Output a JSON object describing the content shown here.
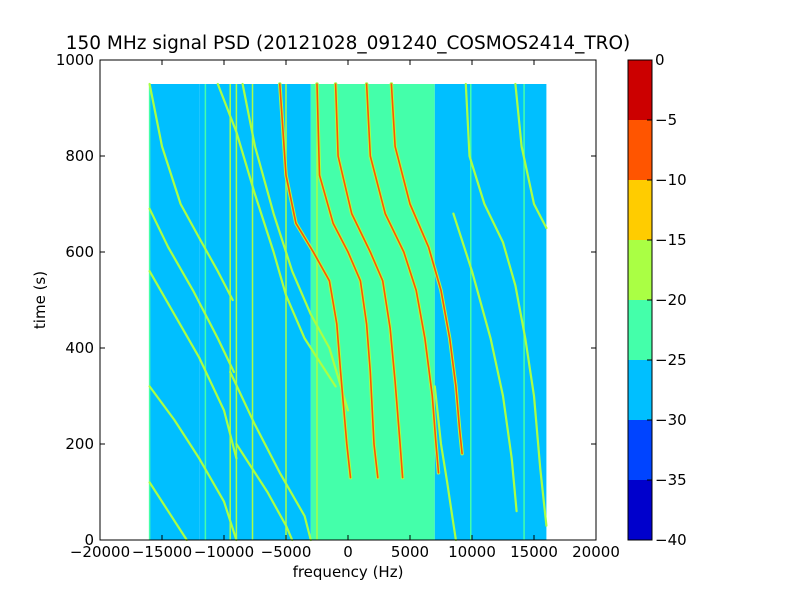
{
  "chart_data": {
    "type": "heatmap",
    "title": "150 MHz signal PSD (20121028_091240_COSMOS2414_TRO)",
    "xlabel": "frequency (Hz)",
    "ylabel": "time (s)",
    "xlim": [
      -20000,
      20000
    ],
    "ylim": [
      0,
      1000
    ],
    "xticks": [
      -20000,
      -15000,
      -10000,
      -5000,
      0,
      5000,
      10000,
      15000,
      20000
    ],
    "xtick_labels": [
      "−20000",
      "−15000",
      "−10000",
      "−5000",
      "0",
      "5000",
      "10000",
      "15000",
      "20000"
    ],
    "yticks": [
      0,
      200,
      400,
      600,
      800,
      1000
    ],
    "ytick_labels": [
      "0",
      "200",
      "400",
      "600",
      "800",
      "1000"
    ],
    "data_extent": {
      "x": [
        -16000,
        16000
      ],
      "y": [
        0,
        950
      ]
    },
    "colorbar": {
      "levels": [
        -40,
        -35,
        -30,
        -25,
        -20,
        -15,
        -10,
        -5,
        0
      ],
      "tick_labels": [
        "−40",
        "−35",
        "−30",
        "−25",
        "−20",
        "−15",
        "−10",
        "−5",
        "0"
      ],
      "colors": [
        "#0000cc",
        "#0044ff",
        "#00bfff",
        "#44ffaa",
        "#aaff44",
        "#ffcc00",
        "#ff5500",
        "#cc0000"
      ]
    },
    "background_regions": [
      {
        "x": [
          -16000,
          -12000
        ],
        "level": -27.5
      },
      {
        "x": [
          -12000,
          -3000
        ],
        "level": -27.5
      },
      {
        "x": [
          -3000,
          7000
        ],
        "level": -22.5
      },
      {
        "x": [
          7000,
          16000
        ],
        "level": -27.5
      }
    ],
    "vertical_lines": [
      {
        "x": -16000,
        "level": -22.5
      },
      {
        "x": -11500,
        "level": -22.5
      },
      {
        "x": -9500,
        "level": -17.5
      },
      {
        "x": -9000,
        "level": -17.5
      },
      {
        "x": -7700,
        "level": -17.5
      },
      {
        "x": -5000,
        "level": -17.5
      },
      {
        "x": -2500,
        "level": -17.5
      },
      {
        "x": 3000,
        "level": -22.5
      },
      {
        "x": 9900,
        "level": -22.5
      },
      {
        "x": 14200,
        "level": -22.5
      }
    ],
    "tracks": [
      {
        "level": -17.5,
        "points": [
          [
            -16000,
            950
          ],
          [
            -15000,
            820
          ],
          [
            -13500,
            700
          ],
          [
            -11800,
            620
          ],
          [
            -10500,
            560
          ],
          [
            -9300,
            500
          ]
        ]
      },
      {
        "level": -17.5,
        "points": [
          [
            -16000,
            690
          ],
          [
            -14500,
            610
          ],
          [
            -12500,
            520
          ],
          [
            -10500,
            420
          ],
          [
            -9200,
            350
          ]
        ]
      },
      {
        "level": -17.5,
        "points": [
          [
            -16000,
            560
          ],
          [
            -14000,
            470
          ],
          [
            -12000,
            380
          ],
          [
            -10000,
            270
          ],
          [
            -9000,
            170
          ]
        ]
      },
      {
        "level": -17.5,
        "points": [
          [
            -16000,
            320
          ],
          [
            -14000,
            250
          ],
          [
            -12000,
            170
          ],
          [
            -10000,
            80
          ],
          [
            -9000,
            0
          ]
        ]
      },
      {
        "level": -17.5,
        "points": [
          [
            -16000,
            120
          ],
          [
            -14500,
            60
          ],
          [
            -13000,
            0
          ]
        ]
      },
      {
        "level": -17.5,
        "points": [
          [
            -10500,
            950
          ],
          [
            -9000,
            850
          ],
          [
            -7500,
            720
          ],
          [
            -6000,
            600
          ],
          [
            -5000,
            510
          ],
          [
            -3500,
            420
          ],
          [
            -1000,
            320
          ]
        ]
      },
      {
        "level": -17.5,
        "points": [
          [
            -8500,
            950
          ],
          [
            -7500,
            820
          ],
          [
            -6000,
            680
          ],
          [
            -4500,
            560
          ],
          [
            -3000,
            470
          ],
          [
            -1500,
            400
          ],
          [
            0,
            270
          ]
        ]
      },
      {
        "level": -17.5,
        "points": [
          [
            -9500,
            350
          ],
          [
            -7500,
            240
          ],
          [
            -5500,
            140
          ],
          [
            -3500,
            50
          ],
          [
            -3000,
            0
          ]
        ]
      },
      {
        "level": -17.5,
        "points": [
          [
            -9000,
            200
          ],
          [
            -6500,
            100
          ],
          [
            -5000,
            30
          ],
          [
            -4500,
            0
          ]
        ]
      },
      {
        "level": -7.5,
        "points": [
          [
            -5500,
            950
          ],
          [
            -5000,
            760
          ],
          [
            -4200,
            660
          ],
          [
            -2800,
            600
          ],
          [
            -1500,
            540
          ],
          [
            -900,
            450
          ],
          [
            -600,
            350
          ],
          [
            -100,
            200
          ],
          [
            200,
            130
          ]
        ]
      },
      {
        "level": -7.5,
        "points": [
          [
            -2500,
            950
          ],
          [
            -2300,
            760
          ],
          [
            -1200,
            660
          ],
          [
            0,
            600
          ],
          [
            1000,
            540
          ],
          [
            1500,
            450
          ],
          [
            1800,
            350
          ],
          [
            2100,
            200
          ],
          [
            2400,
            130
          ]
        ]
      },
      {
        "level": -7.5,
        "points": [
          [
            -1000,
            950
          ],
          [
            -800,
            800
          ],
          [
            300,
            680
          ],
          [
            1800,
            600
          ],
          [
            2800,
            540
          ],
          [
            3400,
            440
          ],
          [
            3800,
            330
          ],
          [
            4200,
            200
          ],
          [
            4400,
            130
          ]
        ]
      },
      {
        "level": -7.5,
        "points": [
          [
            1500,
            950
          ],
          [
            1800,
            800
          ],
          [
            3000,
            680
          ],
          [
            4500,
            600
          ],
          [
            5500,
            520
          ],
          [
            6200,
            420
          ],
          [
            6800,
            300
          ],
          [
            7100,
            200
          ],
          [
            7300,
            140
          ]
        ]
      },
      {
        "level": -7.5,
        "points": [
          [
            3500,
            950
          ],
          [
            3800,
            820
          ],
          [
            5000,
            700
          ],
          [
            6500,
            610
          ],
          [
            7500,
            520
          ],
          [
            8200,
            420
          ],
          [
            8700,
            320
          ],
          [
            9000,
            230
          ],
          [
            9200,
            180
          ]
        ]
      },
      {
        "level": -17.5,
        "points": [
          [
            9500,
            950
          ],
          [
            9800,
            800
          ],
          [
            11000,
            700
          ],
          [
            12500,
            620
          ],
          [
            13500,
            530
          ],
          [
            14300,
            420
          ],
          [
            15000,
            300
          ],
          [
            15500,
            150
          ],
          [
            16000,
            30
          ]
        ]
      },
      {
        "level": -17.5,
        "points": [
          [
            13500,
            950
          ],
          [
            14000,
            820
          ],
          [
            15000,
            700
          ],
          [
            16000,
            650
          ]
        ]
      },
      {
        "level": -17.5,
        "points": [
          [
            8500,
            680
          ],
          [
            10000,
            560
          ],
          [
            11500,
            420
          ],
          [
            12500,
            300
          ],
          [
            13200,
            170
          ],
          [
            13600,
            60
          ]
        ]
      },
      {
        "level": -17.5,
        "points": [
          [
            7000,
            320
          ],
          [
            7500,
            200
          ],
          [
            8000,
            120
          ],
          [
            8400,
            50
          ],
          [
            8700,
            0
          ]
        ]
      }
    ]
  }
}
